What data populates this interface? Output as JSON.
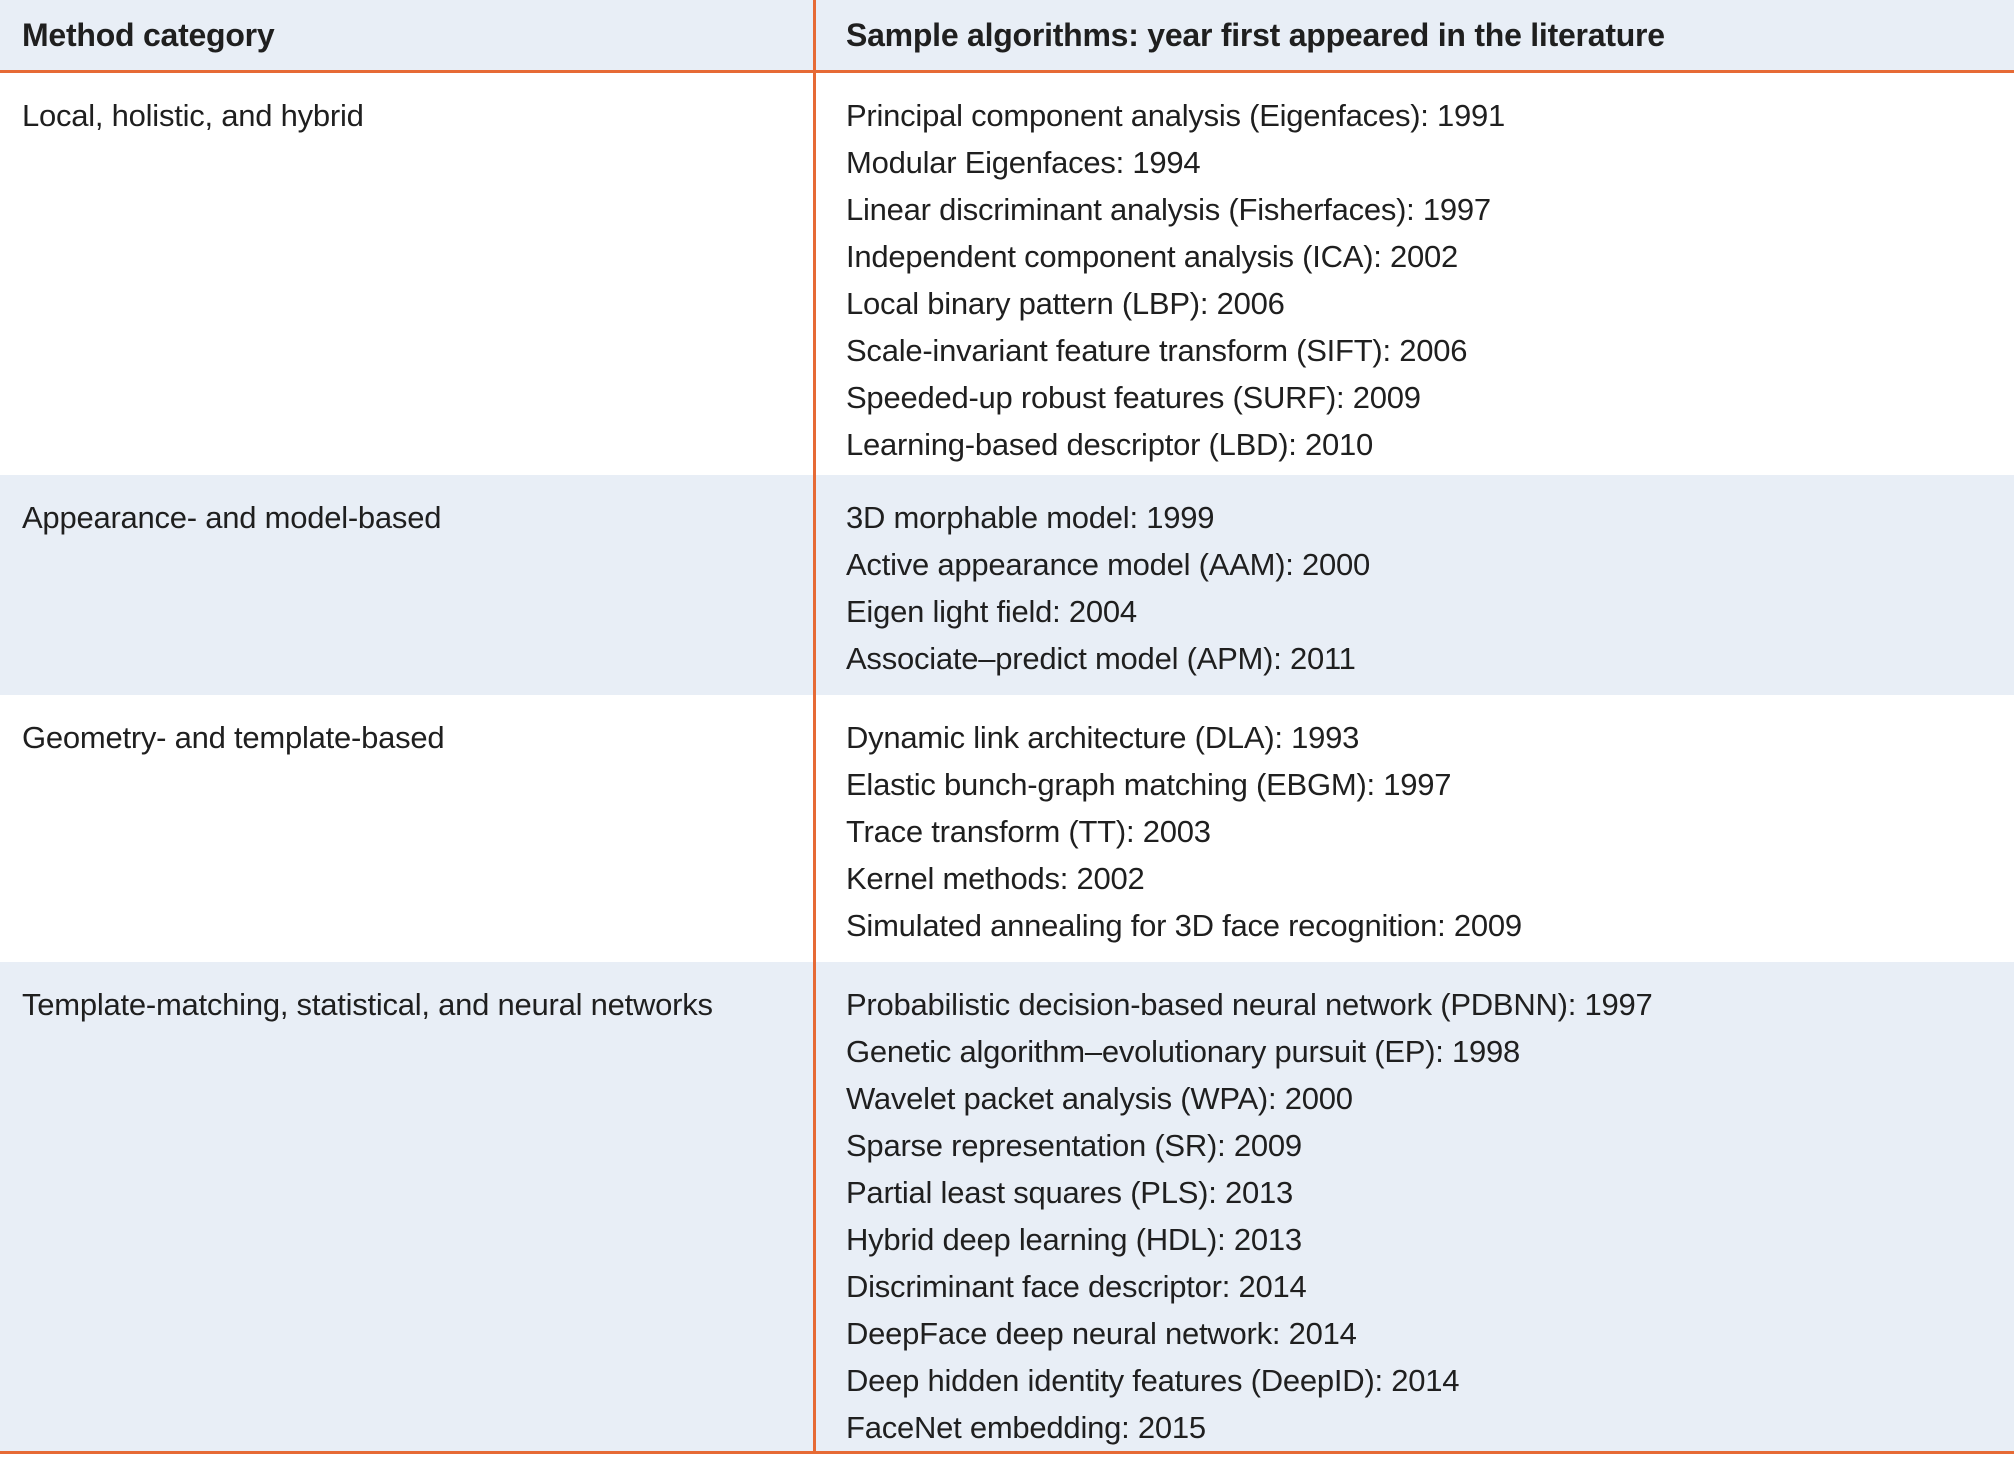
{
  "colors": {
    "accent_orange": "#e66a35",
    "band_blue": "#e8eef6",
    "text": "#1f1f1f"
  },
  "table": {
    "headers": [
      {
        "label": "Method category"
      },
      {
        "label": "Sample algorithms: year first appeared in the literature"
      }
    ],
    "rows": [
      {
        "category": "Local, holistic, and hybrid",
        "shaded": false,
        "min_height": 402,
        "algorithms": [
          "Principal component analysis (Eigenfaces): 1991",
          "Modular Eigenfaces: 1994",
          "Linear discriminant analysis (Fisherfaces): 1997",
          "Independent component analysis (ICA): 2002",
          "Local binary pattern (LBP): 2006",
          "Scale-invariant feature transform (SIFT): 2006",
          "Speeded-up robust features (SURF): 2009",
          "Learning-based descriptor (LBD): 2010"
        ]
      },
      {
        "category": "Appearance- and model-based",
        "shaded": true,
        "min_height": 220,
        "algorithms": [
          "3D morphable model: 1999",
          "Active appearance model (AAM): 2000",
          "Eigen light field: 2004",
          "Associate–predict model (APM): 2011"
        ]
      },
      {
        "category": "Geometry- and template-based",
        "shaded": false,
        "min_height": 267,
        "algorithms": [
          "Dynamic link architecture (DLA): 1993",
          "Elastic bunch-graph matching (EBGM): 1997",
          "Trace transform (TT): 2003",
          "Kernel methods: 2002",
          "Simulated annealing for 3D face recognition: 2009"
        ]
      },
      {
        "category": "Template-matching, statistical, and neural networks",
        "shaded": true,
        "min_height": 487,
        "algorithms": [
          "Probabilistic decision-based neural network (PDBNN): 1997",
          "Genetic algorithm–evolutionary pursuit (EP): 1998",
          "Wavelet packet analysis (WPA): 2000",
          "Sparse representation (SR): 2009",
          "Partial least squares (PLS): 2013",
          "Hybrid deep learning (HDL): 2013",
          "Discriminant face descriptor: 2014",
          "DeepFace deep neural network: 2014",
          "Deep hidden identity features (DeepID): 2014",
          "FaceNet embedding: 2015"
        ]
      }
    ]
  }
}
